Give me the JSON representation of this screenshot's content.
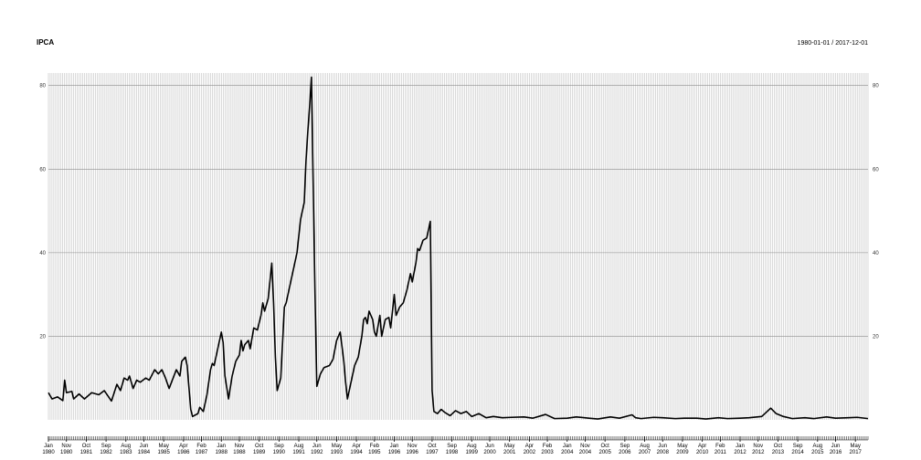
{
  "chart_data": {
    "type": "line",
    "title": "IPCA",
    "date_range": "1980-01-01 / 2017-12-01",
    "x_start": "1980-01",
    "x_end": "2017-12",
    "ylim": [
      0,
      83
    ],
    "y_ticks": [
      "20",
      "40",
      "60",
      "80"
    ],
    "x_ticks": [
      {
        "month": "Jan",
        "year": "1980"
      },
      {
        "month": "Nov",
        "year": "1980"
      },
      {
        "month": "Oct",
        "year": "1981"
      },
      {
        "month": "Sep",
        "year": "1982"
      },
      {
        "month": "Aug",
        "year": "1983"
      },
      {
        "month": "Jun",
        "year": "1984"
      },
      {
        "month": "May",
        "year": "1985"
      },
      {
        "month": "Apr",
        "year": "1986"
      },
      {
        "month": "Feb",
        "year": "1987"
      },
      {
        "month": "Jan",
        "year": "1988"
      },
      {
        "month": "Nov",
        "year": "1988"
      },
      {
        "month": "Oct",
        "year": "1989"
      },
      {
        "month": "Sep",
        "year": "1990"
      },
      {
        "month": "Aug",
        "year": "1991"
      },
      {
        "month": "Jun",
        "year": "1992"
      },
      {
        "month": "May",
        "year": "1993"
      },
      {
        "month": "Apr",
        "year": "1994"
      },
      {
        "month": "Feb",
        "year": "1995"
      },
      {
        "month": "Jan",
        "year": "1996"
      },
      {
        "month": "Nov",
        "year": "1996"
      },
      {
        "month": "Oct",
        "year": "1997"
      },
      {
        "month": "Sep",
        "year": "1998"
      },
      {
        "month": "Aug",
        "year": "1999"
      },
      {
        "month": "Jun",
        "year": "2000"
      },
      {
        "month": "May",
        "year": "2001"
      },
      {
        "month": "Apr",
        "year": "2002"
      },
      {
        "month": "Feb",
        "year": "2003"
      },
      {
        "month": "Jan",
        "year": "2004"
      },
      {
        "month": "Nov",
        "year": "2004"
      },
      {
        "month": "Oct",
        "year": "2005"
      },
      {
        "month": "Sep",
        "year": "2006"
      },
      {
        "month": "Aug",
        "year": "2007"
      },
      {
        "month": "Jun",
        "year": "2008"
      },
      {
        "month": "May",
        "year": "2009"
      },
      {
        "month": "Apr",
        "year": "2010"
      },
      {
        "month": "Feb",
        "year": "2011"
      },
      {
        "month": "Jan",
        "year": "2012"
      },
      {
        "month": "Nov",
        "year": "2012"
      },
      {
        "month": "Oct",
        "year": "2013"
      },
      {
        "month": "Sep",
        "year": "2014"
      },
      {
        "month": "Aug",
        "year": "2015"
      },
      {
        "month": "Jun",
        "year": "2016"
      },
      {
        "month": "May",
        "year": "2017"
      }
    ],
    "points": [
      [
        "1980-01",
        6.5
      ],
      [
        "1980-03",
        5.0
      ],
      [
        "1980-06",
        5.5
      ],
      [
        "1980-09",
        4.6
      ],
      [
        "1980-10",
        9.5
      ],
      [
        "1980-11",
        6.5
      ],
      [
        "1981-02",
        6.8
      ],
      [
        "1981-03",
        5.0
      ],
      [
        "1981-06",
        6.2
      ],
      [
        "1981-09",
        5.0
      ],
      [
        "1982-01",
        6.5
      ],
      [
        "1982-05",
        6.0
      ],
      [
        "1982-08",
        7.0
      ],
      [
        "1982-12",
        4.5
      ],
      [
        "1983-03",
        8.5
      ],
      [
        "1983-05",
        7.0
      ],
      [
        "1983-07",
        10.0
      ],
      [
        "1983-09",
        9.5
      ],
      [
        "1983-10",
        10.5
      ],
      [
        "1983-12",
        7.5
      ],
      [
        "1984-02",
        9.5
      ],
      [
        "1984-04",
        9.0
      ],
      [
        "1984-07",
        10.0
      ],
      [
        "1984-09",
        9.5
      ],
      [
        "1984-12",
        12.0
      ],
      [
        "1985-02",
        11.0
      ],
      [
        "1985-04",
        12.0
      ],
      [
        "1985-06",
        10.0
      ],
      [
        "1985-08",
        7.5
      ],
      [
        "1985-12",
        12.0
      ],
      [
        "1986-02",
        10.5
      ],
      [
        "1986-03",
        14.0
      ],
      [
        "1986-05",
        15.0
      ],
      [
        "1986-06",
        13.0
      ],
      [
        "1986-08",
        2.5
      ],
      [
        "1986-09",
        0.8
      ],
      [
        "1986-12",
        1.5
      ],
      [
        "1987-01",
        3.0
      ],
      [
        "1987-03",
        2.0
      ],
      [
        "1987-05",
        6.0
      ],
      [
        "1987-07",
        12.0
      ],
      [
        "1987-08",
        13.5
      ],
      [
        "1987-09",
        13.0
      ],
      [
        "1987-11",
        17.0
      ],
      [
        "1988-01",
        21.0
      ],
      [
        "1988-02",
        18.5
      ],
      [
        "1988-03",
        10.5
      ],
      [
        "1988-05",
        5.0
      ],
      [
        "1988-07",
        10.5
      ],
      [
        "1988-09",
        14.0
      ],
      [
        "1988-11",
        15.5
      ],
      [
        "1988-12",
        19.0
      ],
      [
        "1989-01",
        16.5
      ],
      [
        "1989-02",
        18.0
      ],
      [
        "1989-04",
        19.0
      ],
      [
        "1989-05",
        17.0
      ],
      [
        "1989-07",
        22.0
      ],
      [
        "1989-09",
        21.5
      ],
      [
        "1989-11",
        25.0
      ],
      [
        "1989-12",
        28.0
      ],
      [
        "1990-01",
        26.0
      ],
      [
        "1990-03",
        29.0
      ],
      [
        "1990-05",
        37.5
      ],
      [
        "1990-06",
        28.0
      ],
      [
        "1990-07",
        15.0
      ],
      [
        "1990-08",
        7.0
      ],
      [
        "1990-10",
        10.0
      ],
      [
        "1990-12",
        27.0
      ],
      [
        "1991-01",
        28.0
      ],
      [
        "1991-03",
        32.0
      ],
      [
        "1991-05",
        36.0
      ],
      [
        "1991-07",
        40.0
      ],
      [
        "1991-09",
        48.0
      ],
      [
        "1991-11",
        52.0
      ],
      [
        "1991-12",
        62.0
      ],
      [
        "1992-01",
        69.0
      ],
      [
        "1992-02",
        75.0
      ],
      [
        "1992-03",
        82.0
      ],
      [
        "1992-05",
        30.0
      ],
      [
        "1992-06",
        8.0
      ],
      [
        "1992-08",
        11.0
      ],
      [
        "1992-10",
        12.5
      ],
      [
        "1993-01",
        13.0
      ],
      [
        "1993-03",
        14.5
      ],
      [
        "1993-05",
        19.0
      ],
      [
        "1993-07",
        21.0
      ],
      [
        "1993-09",
        14.0
      ],
      [
        "1993-10",
        9.0
      ],
      [
        "1993-11",
        5.0
      ],
      [
        "1994-01",
        9.0
      ],
      [
        "1994-03",
        13.0
      ],
      [
        "1994-05",
        15.0
      ],
      [
        "1994-07",
        20.0
      ],
      [
        "1994-08",
        24.0
      ],
      [
        "1994-09",
        24.5
      ],
      [
        "1994-10",
        23.0
      ],
      [
        "1994-11",
        26.0
      ],
      [
        "1995-01",
        24.0
      ],
      [
        "1995-02",
        21.0
      ],
      [
        "1995-03",
        20.0
      ],
      [
        "1995-05",
        25.0
      ],
      [
        "1995-06",
        20.0
      ],
      [
        "1995-08",
        24.0
      ],
      [
        "1995-10",
        24.5
      ],
      [
        "1995-11",
        22.0
      ],
      [
        "1996-01",
        30.0
      ],
      [
        "1996-02",
        25.0
      ],
      [
        "1996-04",
        27.0
      ],
      [
        "1996-06",
        28.0
      ],
      [
        "1996-08",
        31.0
      ],
      [
        "1996-10",
        35.0
      ],
      [
        "1996-11",
        33.0
      ],
      [
        "1997-01",
        37.5
      ],
      [
        "1997-02",
        41.0
      ],
      [
        "1997-03",
        40.5
      ],
      [
        "1997-05",
        43.0
      ],
      [
        "1997-07",
        43.5
      ],
      [
        "1997-09",
        47.5
      ],
      [
        "1997-10",
        7.0
      ],
      [
        "1997-11",
        2.0
      ],
      [
        "1998-01",
        1.5
      ],
      [
        "1998-03",
        2.5
      ],
      [
        "1998-05",
        1.8
      ],
      [
        "1998-08",
        1.0
      ],
      [
        "1998-11",
        2.2
      ],
      [
        "1999-02",
        1.5
      ],
      [
        "1999-05",
        2.0
      ],
      [
        "1999-08",
        0.8
      ],
      [
        "1999-12",
        1.5
      ],
      [
        "2000-04",
        0.5
      ],
      [
        "2000-08",
        0.8
      ],
      [
        "2001-01",
        0.5
      ],
      [
        "2001-06",
        0.6
      ],
      [
        "2002-01",
        0.7
      ],
      [
        "2002-06",
        0.4
      ],
      [
        "2003-01",
        1.3
      ],
      [
        "2003-06",
        0.3
      ],
      [
        "2004-01",
        0.4
      ],
      [
        "2004-06",
        0.7
      ],
      [
        "2005-01",
        0.4
      ],
      [
        "2005-06",
        0.2
      ],
      [
        "2006-01",
        0.7
      ],
      [
        "2006-06",
        0.4
      ],
      [
        "2007-01",
        1.2
      ],
      [
        "2007-03",
        0.5
      ],
      [
        "2007-06",
        0.3
      ],
      [
        "2008-01",
        0.6
      ],
      [
        "2008-06",
        0.5
      ],
      [
        "2009-01",
        0.3
      ],
      [
        "2009-06",
        0.4
      ],
      [
        "2010-01",
        0.4
      ],
      [
        "2010-06",
        0.2
      ],
      [
        "2011-01",
        0.5
      ],
      [
        "2011-06",
        0.3
      ],
      [
        "2012-01",
        0.4
      ],
      [
        "2012-06",
        0.5
      ],
      [
        "2013-01",
        0.8
      ],
      [
        "2013-06",
        2.8
      ],
      [
        "2013-09",
        1.5
      ],
      [
        "2014-01",
        0.8
      ],
      [
        "2014-06",
        0.3
      ],
      [
        "2015-01",
        0.5
      ],
      [
        "2015-06",
        0.3
      ],
      [
        "2016-01",
        0.7
      ],
      [
        "2016-06",
        0.4
      ],
      [
        "2017-01",
        0.5
      ],
      [
        "2017-06",
        0.6
      ],
      [
        "2017-12",
        0.3
      ]
    ]
  }
}
